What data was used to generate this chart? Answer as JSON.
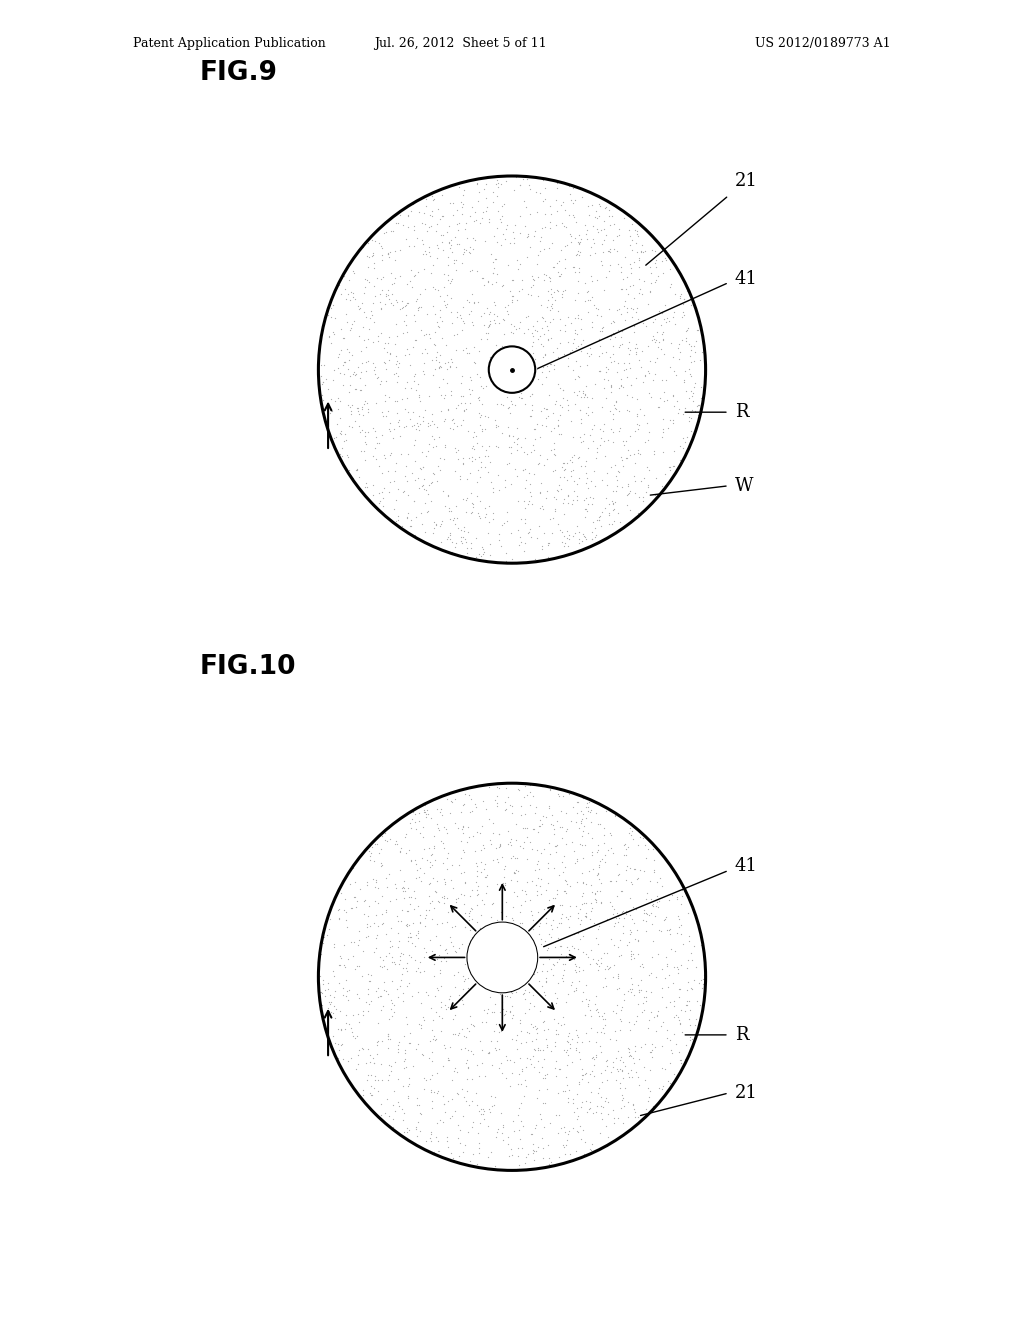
{
  "bg_color": "#ffffff",
  "header_left": "Patent Application Publication",
  "header_mid": "Jul. 26, 2012  Sheet 5 of 11",
  "header_right": "US 2012/0189773 A1",
  "fig9_label": "FIG.9",
  "fig10_label": "FIG.10",
  "dot_color": "#aaaaaa",
  "dot_size": 0.8,
  "dot_density": 2000
}
